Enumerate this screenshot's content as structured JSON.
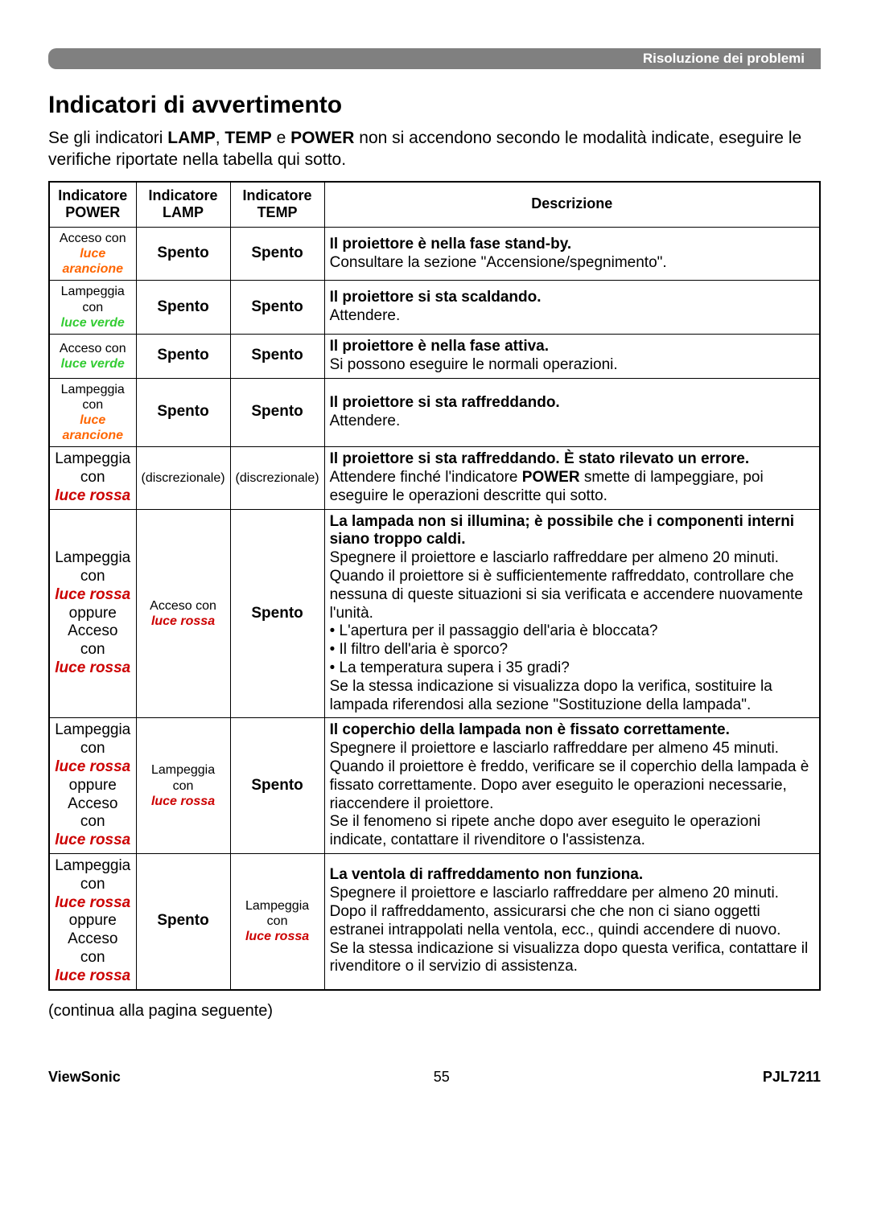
{
  "header_label": "Risoluzione dei problemi",
  "title": "Indicatori di avvertimento",
  "intro_pre": "Se gli indicatori ",
  "intro_b1": "LAMP",
  "intro_mid1": ", ",
  "intro_b2": "TEMP",
  "intro_mid2": " e ",
  "intro_b3": "POWER",
  "intro_post": " non si accendono secondo le modalità indicate, eseguire le verifiche riportate nella tabella qui sotto.",
  "th_power_l1": "Indicatore",
  "th_power_l2": "POWER",
  "th_lamp_l1": "Indicatore",
  "th_lamp_l2": "LAMP",
  "th_temp_l1": "Indicatore",
  "th_temp_l2": "TEMP",
  "th_desc": "Descrizione",
  "r1_power_l1": "Acceso con",
  "r1_power_l2": "luce arancione",
  "r1_lamp": "Spento",
  "r1_temp": "Spento",
  "r1_desc_b": "Il proiettore è nella fase stand-by.",
  "r1_desc_t": "Consultare la sezione \"Accensione/spegnimento\".",
  "r2_power_l1": "Lampeggia con",
  "r2_power_l2": "luce verde",
  "r2_lamp": "Spento",
  "r2_temp": "Spento",
  "r2_desc_b": "Il proiettore si sta scaldando.",
  "r2_desc_t": "Attendere.",
  "r3_power_l1": "Acceso con",
  "r3_power_l2": "luce verde",
  "r3_lamp": "Spento",
  "r3_temp": "Spento",
  "r3_desc_b": "Il proiettore è nella fase attiva.",
  "r3_desc_t": "Si possono eseguire le normali operazioni.",
  "r4_power_l1": "Lampeggia con",
  "r4_power_l2": "luce arancione",
  "r4_lamp": "Spento",
  "r4_temp": "Spento",
  "r4_desc_b": "Il proiettore si sta raffreddando.",
  "r4_desc_t": "Attendere.",
  "r5_power_l1": "Lampeggia con",
  "r5_power_l2": "luce rossa",
  "r5_lamp": "(discrezionale)",
  "r5_temp": "(discrezionale)",
  "r5_desc_b": "Il proiettore si sta raffreddando. È stato rilevato un errore.",
  "r5_desc_t1": "Attendere finché l'indicatore ",
  "r5_desc_tb": "POWER",
  "r5_desc_t2": " smette di lampeggiare, poi eseguire le operazioni descritte qui sotto.",
  "r6_power_l1": "Lampeggia con",
  "r6_power_l2": "luce rossa",
  "r6_power_l3": "oppure Acceso con",
  "r6_power_l4": "luce rossa",
  "r6_lamp_l1": "Acceso con",
  "r6_lamp_l2": "luce rossa",
  "r6_temp": "Spento",
  "r6_desc_b": "La lampada non si illumina; è possibile che i componenti interni siano troppo caldi.",
  "r6_desc_t": "Spegnere il proiettore e lasciarlo raffreddare per almeno 20 minuti. Quando il proiettore si è sufficientemente raffreddato, controllare che nessuna di queste situazioni si sia verificata e accendere nuovamente l'unità.\n• L'apertura per il passaggio dell'aria è bloccata?\n• Il filtro dell'aria è sporco?\n• La temperatura supera i 35 gradi?\nSe la stessa indicazione si visualizza dopo la verifica, sostituire la lampada riferendosi alla sezione \"Sostituzione della lampada\".",
  "r7_power_l1": "Lampeggia con",
  "r7_power_l2": "luce rossa",
  "r7_power_l3": "oppure Acceso con",
  "r7_power_l4": "luce rossa",
  "r7_lamp_l1": "Lampeggia con",
  "r7_lamp_l2": "luce rossa",
  "r7_temp": "Spento",
  "r7_desc_b": "Il coperchio della lampada non è fissato correttamente.",
  "r7_desc_t": "Spegnere il proiettore e lasciarlo raffreddare per almeno 45 minuti. Quando il proiettore è freddo, verificare se il coperchio della lampada è fissato correttamente. Dopo aver eseguito le operazioni necessarie, riaccendere il proiettore.\nSe il fenomeno si ripete anche dopo aver eseguito le operazioni indicate, contattare il rivenditore o l'assistenza.",
  "r8_power_l1": "Lampeggia con",
  "r8_power_l2": "luce rossa",
  "r8_power_l3": "oppure Acceso con",
  "r8_power_l4": "luce rossa",
  "r8_lamp": "Spento",
  "r8_temp_l1": "Lampeggia con",
  "r8_temp_l2": "luce rossa",
  "r8_desc_b": "La ventola di raffreddamento non funziona.",
  "r8_desc_t": "Spegnere il proiettore e lasciarlo raffreddare per almeno 20 minuti. Dopo il raffreddamento, assicurarsi che che non ci siano oggetti estranei intrappolati nella ventola, ecc., quindi accendere di nuovo.\nSe la stessa indicazione si visualizza dopo questa verifica, contattare il rivenditore o il servizio di assistenza.",
  "continua": "(continua alla pagina seguente)",
  "footer_left": "ViewSonic",
  "footer_center": "55",
  "footer_right": "PJL7211"
}
